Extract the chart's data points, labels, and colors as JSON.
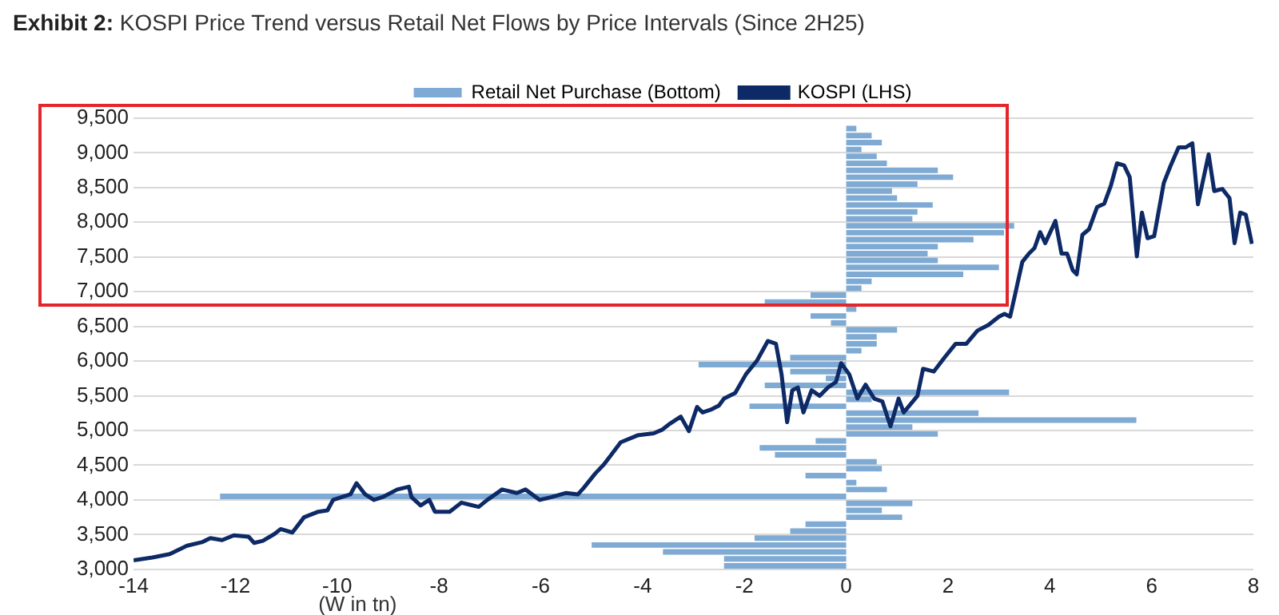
{
  "chart_data": {
    "type": "bar",
    "orientation": "horizontal",
    "title": "Exhibit 2: KOSPI Price Trend versus Retail Net Flows by Price Intervals (Since 2H25)",
    "xlabel": "(W in tn)",
    "xlim": [
      -14,
      8
    ],
    "xticks": [
      -14,
      -12,
      -10,
      -8,
      -6,
      -4,
      -2,
      0,
      2,
      4,
      6,
      8
    ],
    "ylim": [
      3000,
      9500
    ],
    "yticks": [
      {
        "value": 3000,
        "label": "3,000"
      },
      {
        "value": 3500,
        "label": "3,500"
      },
      {
        "value": 4000,
        "label": "4,000"
      },
      {
        "value": 4500,
        "label": "4,500"
      },
      {
        "value": 5000,
        "label": "5,000"
      },
      {
        "value": 5500,
        "label": "5,500"
      },
      {
        "value": 6000,
        "label": "6,000"
      },
      {
        "value": 6500,
        "label": "6,500"
      },
      {
        "value": 7000,
        "label": "7,000"
      },
      {
        "value": 7500,
        "label": "7,500"
      },
      {
        "value": 8000,
        "label": "8,000"
      },
      {
        "value": 8500,
        "label": "8,500"
      },
      {
        "value": 9000,
        "label": "9,000"
      },
      {
        "value": 9500,
        "label": "9,500"
      }
    ],
    "grid": "y",
    "legend": "top",
    "marker": "none",
    "series": [
      {
        "name": "Retail Net Purchase (Bottom)",
        "color": "#7eaad3",
        "x": [
          3050,
          3150,
          3250,
          3350,
          3450,
          3550,
          3650,
          3750,
          3850,
          3950,
          4050,
          4150,
          4250,
          4350,
          4450,
          4550,
          4650,
          4750,
          4850,
          4950,
          5050,
          5150,
          5250,
          5350,
          5450,
          5550,
          5650,
          5750,
          5850,
          5950,
          6050,
          6150,
          6250,
          6350,
          6450,
          6550,
          6650,
          6750,
          6850,
          6950,
          7050,
          7150,
          7250,
          7350,
          7450,
          7550,
          7650,
          7750,
          7850,
          7950,
          8050,
          8150,
          8250,
          8350,
          8450,
          8550,
          8650,
          8750,
          8850,
          8950,
          9050,
          9150,
          9250,
          9350
        ],
        "values": [
          -2.4,
          -2.4,
          -3.6,
          -5.0,
          -1.8,
          -1.1,
          -0.8,
          1.1,
          0.7,
          1.3,
          -12.3,
          0.8,
          0.2,
          -0.8,
          0.7,
          0.6,
          -1.4,
          -1.7,
          -0.6,
          1.8,
          1.3,
          5.7,
          2.6,
          -1.9,
          0.5,
          3.2,
          -1.6,
          -0.4,
          -1.1,
          -2.9,
          -1.1,
          0.3,
          0.6,
          0.6,
          1.0,
          -0.3,
          -0.7,
          0.2,
          -1.6,
          -0.7,
          0.3,
          0.5,
          2.3,
          3.0,
          1.8,
          1.6,
          1.8,
          2.5,
          3.1,
          3.3,
          1.3,
          1.4,
          1.7,
          1.0,
          0.9,
          1.4,
          2.1,
          1.8,
          0.8,
          0.6,
          0.3,
          0.7,
          0.5,
          0.2
        ]
      },
      {
        "name": "KOSPI (LHS)",
        "type": "line",
        "color": "#0d2a66",
        "x": [
          3130,
          3170,
          3220,
          3340,
          3390,
          3450,
          3420,
          3490,
          3470,
          3380,
          3410,
          3510,
          3580,
          3530,
          3750,
          3830,
          3850,
          4000,
          4040,
          4080,
          4240,
          4080,
          4000,
          4040,
          4150,
          4190,
          4040,
          3920,
          4000,
          3830,
          3830,
          3960,
          3930,
          3900,
          4000,
          4150,
          4100,
          4150,
          4000,
          4040,
          4100,
          4080,
          4170,
          4380,
          4510,
          4830,
          4930,
          4960,
          5010,
          5100,
          5200,
          4990,
          5340,
          5260,
          5300,
          5360,
          5460,
          5540,
          5810,
          6010,
          6290,
          6250,
          5810,
          5120,
          5580,
          5620,
          5260,
          5580,
          5500,
          5620,
          5700,
          5970,
          5810,
          5460,
          5660,
          5460,
          5420,
          5060,
          5460,
          5260,
          5500,
          5890,
          5850,
          6050,
          6250,
          6250,
          6440,
          6520,
          6640,
          6680,
          6640,
          7000,
          7430,
          7550,
          7630,
          7860,
          7700,
          8020,
          7550,
          7550,
          7310,
          7250,
          7820,
          7900,
          8220,
          8270,
          8530,
          8850,
          8820,
          8650,
          7510,
          8140,
          7770,
          7800,
          8570,
          8810,
          9080,
          9080,
          9140,
          8260,
          8980,
          8450,
          8480,
          8350,
          7700,
          8140,
          8110,
          7690
        ],
        "values": [
          -14,
          -13.63,
          -13.29,
          -12.95,
          -12.66,
          -12.49,
          -12.26,
          -12.03,
          -11.74,
          -11.63,
          -11.46,
          -11.23,
          -11.11,
          -10.88,
          -10.65,
          -10.37,
          -10.19,
          -10.08,
          -9.91,
          -9.74,
          -9.62,
          -9.45,
          -9.28,
          -9.11,
          -8.82,
          -8.59,
          -8.54,
          -8.36,
          -8.19,
          -8.08,
          -7.79,
          -7.56,
          -7.39,
          -7.22,
          -7.05,
          -6.76,
          -6.47,
          -6.3,
          -6.02,
          -5.79,
          -5.5,
          -5.27,
          -5.16,
          -4.93,
          -4.76,
          -4.43,
          -4.1,
          -3.78,
          -3.62,
          -3.46,
          -3.25,
          -3.09,
          -2.93,
          -2.82,
          -2.66,
          -2.5,
          -2.4,
          -2.18,
          -1.97,
          -1.75,
          -1.54,
          -1.38,
          -1.27,
          -1.16,
          -1.06,
          -0.95,
          -0.84,
          -0.68,
          -0.52,
          -0.36,
          -0.2,
          -0.1,
          0.06,
          0.22,
          0.38,
          0.55,
          0.71,
          0.87,
          1.03,
          1.13,
          1.4,
          1.51,
          1.72,
          1.93,
          2.15,
          2.36,
          2.58,
          2.79,
          3.0,
          3.11,
          3.22,
          3.33,
          3.46,
          3.59,
          3.7,
          3.81,
          3.91,
          4.11,
          4.23,
          4.34,
          4.45,
          4.53,
          4.64,
          4.77,
          4.93,
          5.07,
          5.2,
          5.32,
          5.46,
          5.57,
          5.71,
          5.81,
          5.92,
          6.05,
          6.24,
          6.37,
          6.53,
          6.67,
          6.8,
          6.91,
          7.12,
          7.23,
          7.39,
          7.53,
          7.63,
          7.74,
          7.85,
          7.97
        ]
      }
    ]
  }
}
